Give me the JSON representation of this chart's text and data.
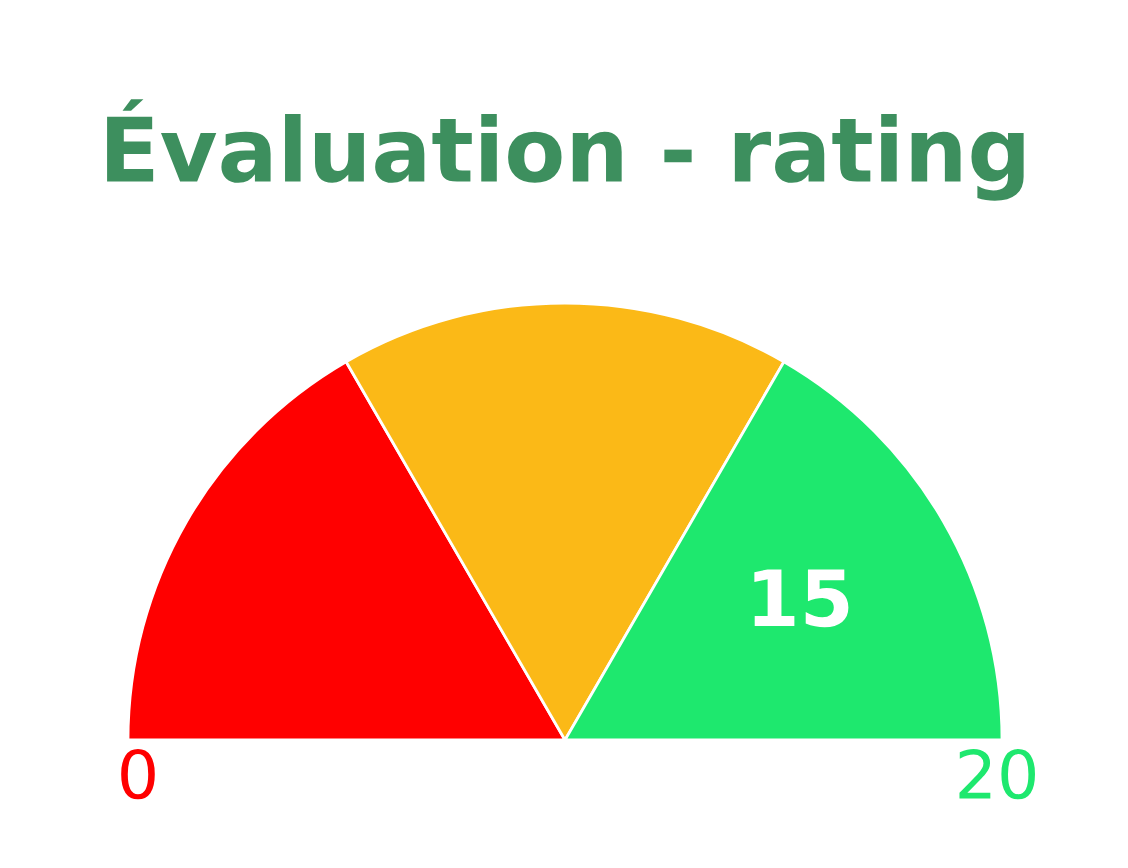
{
  "chart_data": {
    "type": "pie",
    "title": "Évaluation - rating",
    "categories": [
      null,
      null,
      null
    ],
    "values": [
      33.3,
      33.4,
      33.3
    ],
    "colors": [
      "#ff0000",
      "#fbb917",
      "#1ee86e"
    ],
    "annotations": [
      "15",
      "0",
      "20"
    ]
  }
}
